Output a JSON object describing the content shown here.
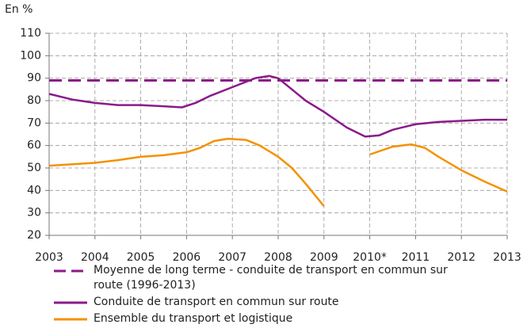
{
  "chart_data": {
    "type": "line",
    "y_label": "En %",
    "xlim": [
      2003,
      2013
    ],
    "xticks": [
      2003,
      2004,
      2005,
      2006,
      2007,
      2008,
      2009,
      {
        "value": 2010,
        "label": "2010*"
      },
      2011,
      2012,
      2013
    ],
    "ylim": [
      20,
      110
    ],
    "yticks": [
      20,
      30,
      40,
      50,
      60,
      70,
      80,
      90,
      100,
      110
    ],
    "grid": true,
    "series": [
      {
        "name": "Moyenne de long terme - conduite de transport en commun sur route (1996-2013)",
        "color": "#8b1a89",
        "dashed": true,
        "x": [
          2003,
          2013
        ],
        "values": [
          89,
          89
        ]
      },
      {
        "name": "Conduite de transport en commun sur route",
        "color": "#8b1a89",
        "x": [
          2003,
          2003.5,
          2004,
          2004.5,
          2005,
          2005.5,
          2005.9,
          2006.2,
          2006.5,
          2007,
          2007.5,
          2007.8,
          2008,
          2008.3,
          2008.6,
          2009,
          2009.5,
          2009.9,
          2010.2,
          2010.5,
          2011,
          2011.5,
          2012,
          2012.5,
          2013
        ],
        "values": [
          83,
          80.5,
          79,
          78,
          78,
          77.5,
          77,
          79,
          82,
          86,
          90,
          91,
          90,
          85,
          80,
          75,
          68,
          64,
          64.5,
          67,
          69.5,
          70.5,
          71,
          71.5,
          71.5
        ]
      },
      {
        "name": "Ensemble du transport et logistique",
        "color": "#f39200",
        "x": [
          2003,
          2004,
          2004.5,
          2005,
          2005.5,
          2006,
          2006.3,
          2006.6,
          2006.9,
          2007.3,
          2007.6,
          2008,
          2008.3,
          2008.6,
          2009,
          2009.5,
          2010,
          2010.5,
          2010.9,
          2011.2,
          2011.5,
          2012,
          2012.5,
          2013
        ],
        "values": [
          51,
          52.3,
          53.5,
          55,
          55.7,
          57,
          59,
          62,
          63,
          62.5,
          60,
          55,
          50,
          43,
          33,
          null,
          56,
          59.5,
          60.5,
          59,
          55,
          49,
          44,
          39.5
        ]
      }
    ]
  }
}
